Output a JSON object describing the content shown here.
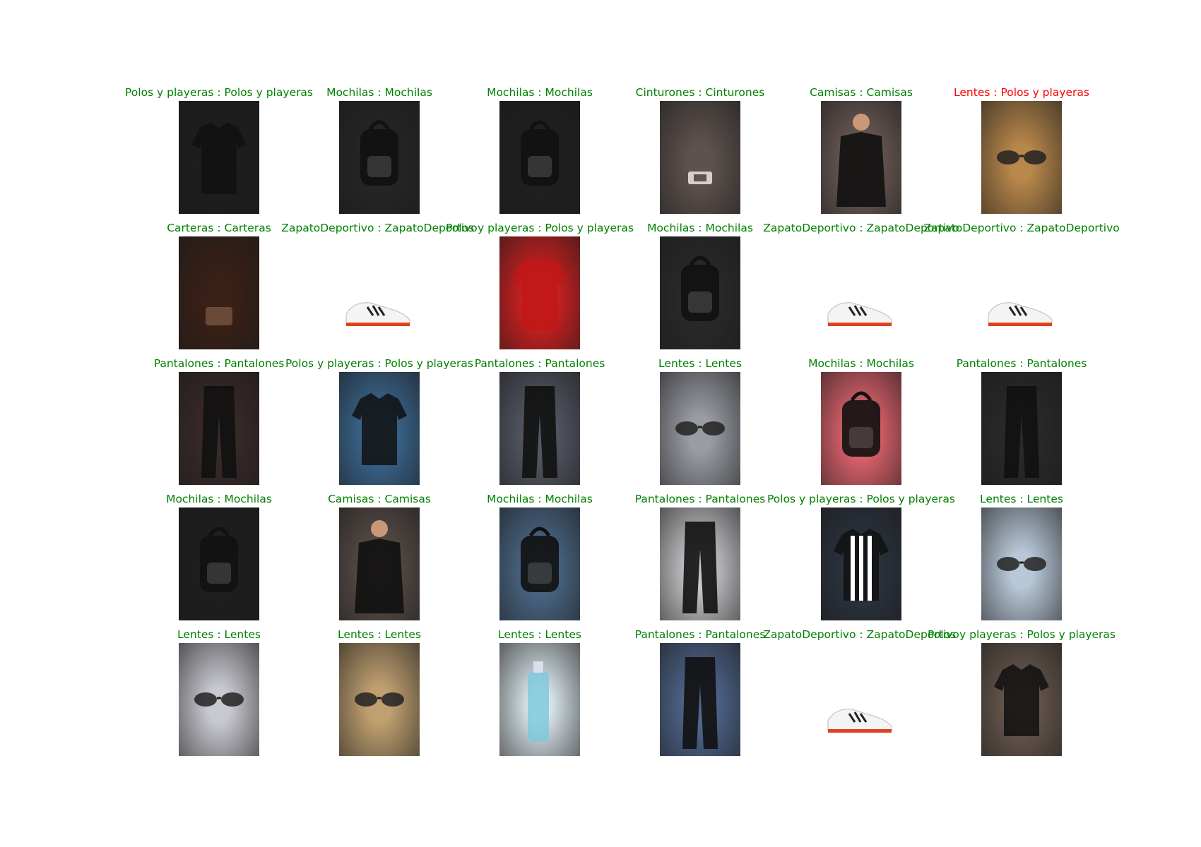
{
  "colors": {
    "correct": "#008000",
    "incorrect": "#ff0000"
  },
  "items": [
    {
      "label": "Polos y playeras : Polos y playeras",
      "correct": true,
      "icon": "polo-shirt-icon"
    },
    {
      "label": "Mochilas : Mochilas",
      "correct": true,
      "icon": "backpack-icon"
    },
    {
      "label": "Mochilas : Mochilas",
      "correct": true,
      "icon": "backpack-icon"
    },
    {
      "label": "Cinturones : Cinturones",
      "correct": true,
      "icon": "belt-icon"
    },
    {
      "label": "Camisas : Camisas",
      "correct": true,
      "icon": "shirt-icon"
    },
    {
      "label": "Lentes : Polos y playeras",
      "correct": false,
      "icon": "sunglasses-icon"
    },
    {
      "label": "Carteras : Carteras",
      "correct": true,
      "icon": "wallet-icon"
    },
    {
      "label": "ZapatoDeportivo : ZapatoDeportivo",
      "correct": true,
      "icon": "sneaker-icon"
    },
    {
      "label": "Polos y playeras : Polos y playeras",
      "correct": true,
      "icon": "tshirt-icon"
    },
    {
      "label": "Mochilas : Mochilas",
      "correct": true,
      "icon": "backpack-icon"
    },
    {
      "label": "ZapatoDeportivo : ZapatoDeportivo",
      "correct": true,
      "icon": "sneaker-icon"
    },
    {
      "label": "ZapatoDeportivo : ZapatoDeportivo",
      "correct": true,
      "icon": "sneaker-icon"
    },
    {
      "label": "Pantalones : Pantalones",
      "correct": true,
      "icon": "pants-icon"
    },
    {
      "label": "Polos y playeras : Polos y playeras",
      "correct": true,
      "icon": "longsleeve-icon"
    },
    {
      "label": "Pantalones : Pantalones",
      "correct": true,
      "icon": "pants-icon"
    },
    {
      "label": "Lentes : Lentes",
      "correct": true,
      "icon": "sunglasses-icon"
    },
    {
      "label": "Mochilas : Mochilas",
      "correct": true,
      "icon": "backpack-icon"
    },
    {
      "label": "Pantalones : Pantalones",
      "correct": true,
      "icon": "pants-icon"
    },
    {
      "label": "Mochilas : Mochilas",
      "correct": true,
      "icon": "backpack-icon"
    },
    {
      "label": "Camisas : Camisas",
      "correct": true,
      "icon": "shirt-icon"
    },
    {
      "label": "Mochilas : Mochilas",
      "correct": true,
      "icon": "backpack-icon"
    },
    {
      "label": "Pantalones : Pantalones",
      "correct": true,
      "icon": "pants-icon"
    },
    {
      "label": "Polos y playeras : Polos y playeras",
      "correct": true,
      "icon": "jersey-icon"
    },
    {
      "label": "Lentes : Lentes",
      "correct": true,
      "icon": "glasses-icon"
    },
    {
      "label": "Lentes : Lentes",
      "correct": true,
      "icon": "glasses-icon"
    },
    {
      "label": "Lentes : Lentes",
      "correct": true,
      "icon": "sunglasses-icon"
    },
    {
      "label": "Lentes : Lentes",
      "correct": true,
      "icon": "cleaning-spray-icon"
    },
    {
      "label": "Pantalones : Pantalones",
      "correct": true,
      "icon": "jeans-icon"
    },
    {
      "label": "ZapatoDeportivo : ZapatoDeportivo",
      "correct": true,
      "icon": "sneaker-icon"
    },
    {
      "label": "Polos y playeras : Polos y playeras",
      "correct": true,
      "icon": "tshirt-icon"
    }
  ]
}
